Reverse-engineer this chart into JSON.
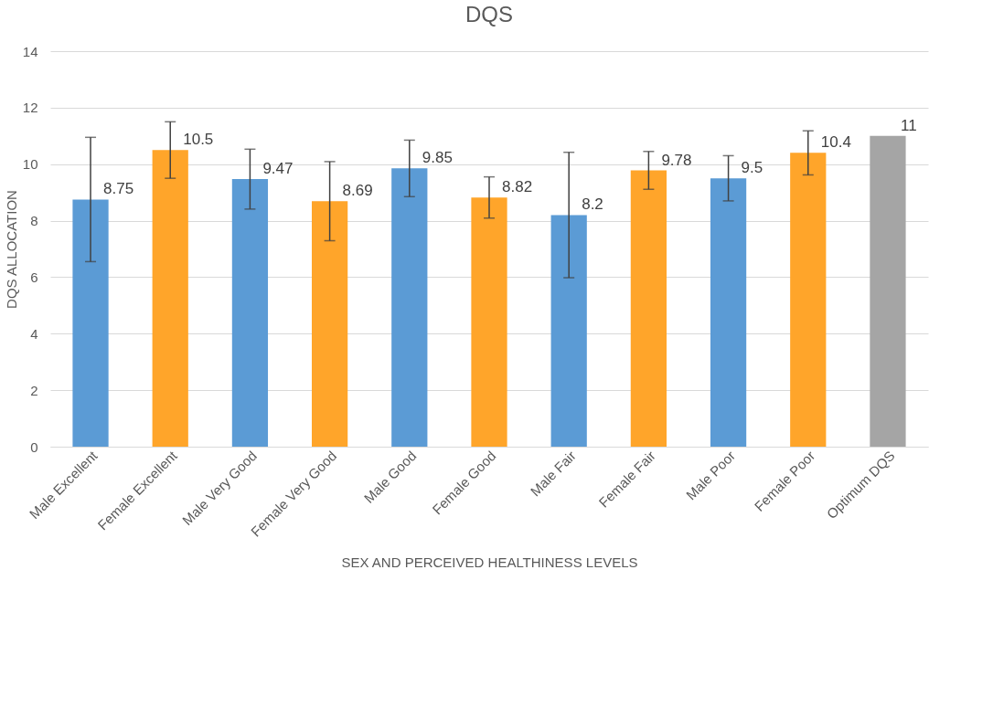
{
  "chart_data": {
    "type": "bar",
    "title": "DQS",
    "xlabel": "SEX AND PERCEIVED HEALTHINESS LEVELS",
    "ylabel": "DQS ALLOCATION",
    "categories": [
      "Male Excellent",
      "Female Excellent",
      "Male Very Good",
      "Female Very Good",
      "Male Good",
      "Female Good",
      "Male Fair",
      "Female Fair",
      "Male Poor",
      "Female Poor",
      "Optimum DQS"
    ],
    "values": [
      8.75,
      10.5,
      9.47,
      8.69,
      9.85,
      8.82,
      8.2,
      9.78,
      9.5,
      10.4,
      11
    ],
    "colors": [
      "#5b9bd5",
      "#ffa52a",
      "#5b9bd5",
      "#ffa52a",
      "#5b9bd5",
      "#ffa52a",
      "#5b9bd5",
      "#ffa52a",
      "#5b9bd5",
      "#ffa52a",
      "#a5a5a5"
    ],
    "errors": [
      2.2,
      1.0,
      1.06,
      1.4,
      1.0,
      0.73,
      2.22,
      0.67,
      0.8,
      0.78,
      null
    ],
    "ylim": [
      0,
      14
    ],
    "yticks": [
      0,
      2,
      4,
      6,
      8,
      10,
      12,
      14
    ],
    "grid": "y",
    "data_labels": true
  }
}
